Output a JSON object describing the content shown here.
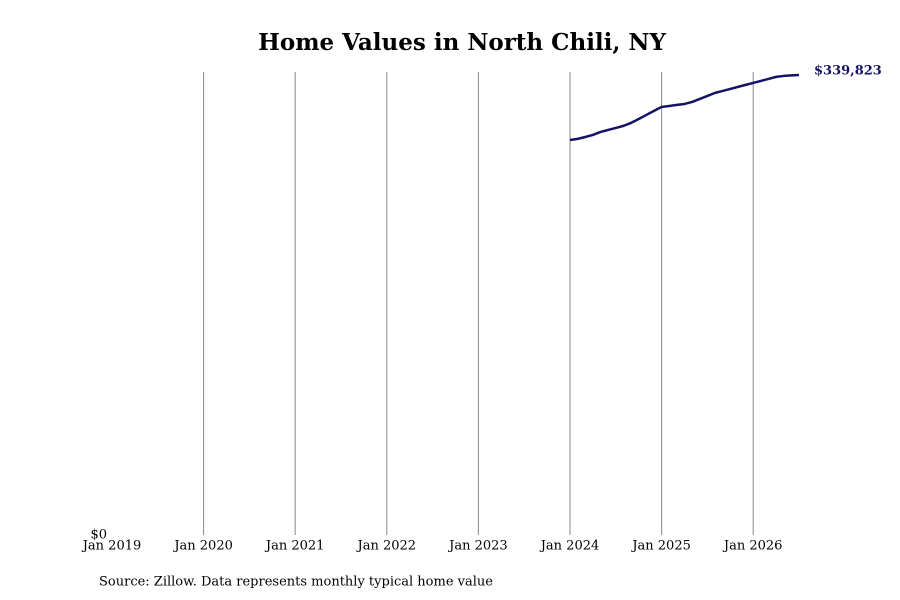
{
  "chart_data": {
    "type": "line",
    "title": "Home Values in North Chili, NY",
    "source": "Source: Zillow. Data represents monthly typical home value",
    "x": [
      "2024-01",
      "2024-02",
      "2024-03",
      "2024-04",
      "2024-05",
      "2024-06",
      "2024-07",
      "2024-08",
      "2024-09",
      "2024-10",
      "2024-11",
      "2024-12",
      "2025-01",
      "2025-02",
      "2025-03",
      "2025-04",
      "2025-05",
      "2025-06",
      "2025-07",
      "2025-08",
      "2025-09",
      "2025-10",
      "2025-11",
      "2025-12",
      "2026-01",
      "2026-02",
      "2026-03",
      "2026-04",
      "2026-05",
      "2026-06",
      "2026-07"
    ],
    "values": [
      291800,
      292600,
      294000,
      295500,
      297700,
      299200,
      300700,
      302200,
      304400,
      307300,
      310300,
      313300,
      316200,
      316900,
      317700,
      318400,
      319900,
      322100,
      324300,
      326600,
      328000,
      329500,
      331000,
      332500,
      333900,
      335400,
      336900,
      338400,
      339100,
      339500,
      339823
    ],
    "value_labels": [
      null,
      null,
      null,
      null,
      null,
      null,
      null,
      null,
      null,
      null,
      null,
      null,
      null,
      null,
      null,
      null,
      null,
      null,
      null,
      null,
      null,
      null,
      null,
      null,
      null,
      null,
      null,
      null,
      null,
      null,
      "$339,823"
    ],
    "color": "#141466",
    "xlim": [
      "2019-01",
      "2026-07"
    ],
    "xticks": [
      {
        "value": "2019-01",
        "label": "Jan 2019"
      },
      {
        "value": "2020-01",
        "label": "Jan 2020"
      },
      {
        "value": "2021-01",
        "label": "Jan 2021"
      },
      {
        "value": "2022-01",
        "label": "Jan 2022"
      },
      {
        "value": "2023-01",
        "label": "Jan 2023"
      },
      {
        "value": "2024-01",
        "label": "Jan 2024"
      },
      {
        "value": "2025-01",
        "label": "Jan 2025"
      },
      {
        "value": "2026-01",
        "label": "Jan 2026"
      }
    ],
    "ylim": [
      0,
      342000
    ],
    "yticks": [
      {
        "value": 0,
        "label": "$0"
      }
    ],
    "grid": true
  }
}
